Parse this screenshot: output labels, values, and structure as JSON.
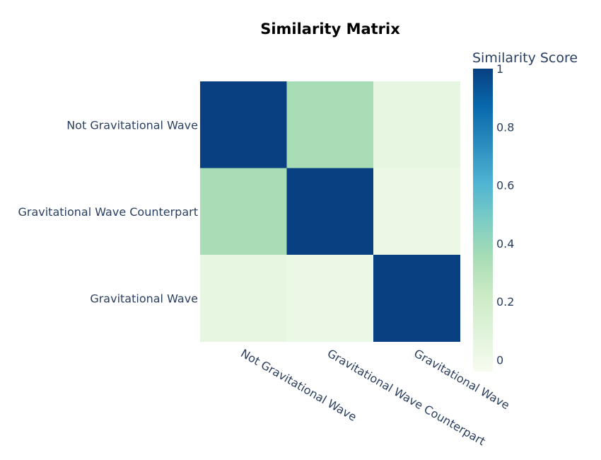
{
  "chart_data": {
    "type": "heatmap",
    "title": "Similarity Matrix",
    "x_categories": [
      "Not Gravitational Wave",
      "Gravitational Wave Counterpart",
      "Gravitational Wave"
    ],
    "y_categories": [
      "Not Gravitational Wave",
      "Gravitational Wave Counterpart",
      "Gravitational Wave"
    ],
    "values": [
      [
        1.0,
        0.35,
        0.05
      ],
      [
        0.35,
        1.0,
        0.02
      ],
      [
        0.05,
        0.02,
        1.0
      ]
    ],
    "colorbar": {
      "title": "Similarity Score",
      "range": [
        -0.04,
        1.0
      ],
      "ticks": [
        0,
        0.2,
        0.4,
        0.6,
        0.8,
        1
      ],
      "tick_labels": [
        "0",
        "0.2",
        "0.4",
        "0.6",
        "0.8",
        "1"
      ]
    },
    "colorscale": [
      [
        0.0,
        "#f7fcf0"
      ],
      [
        0.125,
        "#e0f3db"
      ],
      [
        0.25,
        "#ccebc5"
      ],
      [
        0.375,
        "#a8ddb5"
      ],
      [
        0.5,
        "#7bccc4"
      ],
      [
        0.625,
        "#4eb3d3"
      ],
      [
        0.75,
        "#2b8cbe"
      ],
      [
        0.875,
        "#0868ac"
      ],
      [
        1.0,
        "#084081"
      ]
    ]
  }
}
